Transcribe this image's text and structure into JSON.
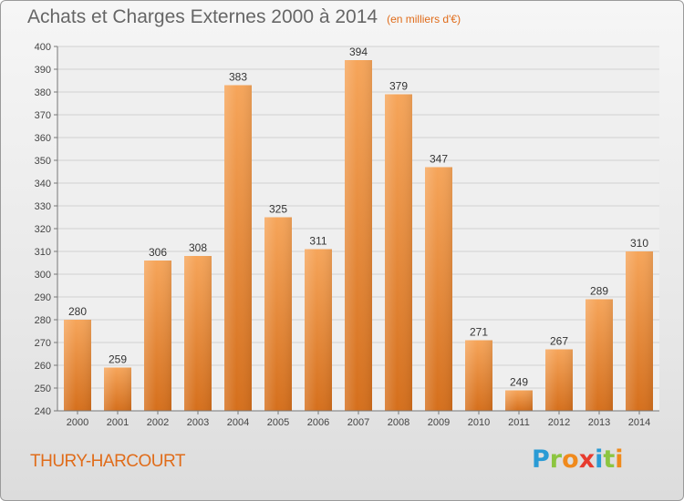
{
  "header": {
    "title": "Achats et Charges Externes 2000 à 2014",
    "unit_note": "(en milliers d'€)"
  },
  "footer": {
    "place": "THURY-HARCOURT",
    "brand_letters": [
      {
        "char": "P",
        "color": "#2a9bd5"
      },
      {
        "char": "r",
        "color": "#8cc540"
      },
      {
        "char": "o",
        "color": "#f08a1c"
      },
      {
        "char": "x",
        "color": "#e73b2e"
      },
      {
        "char": "i",
        "color": "#2a9bd5"
      },
      {
        "char": "t",
        "color": "#8cc540"
      },
      {
        "char": "i",
        "color": "#f08a1c"
      }
    ]
  },
  "chart_data": {
    "type": "bar",
    "title": "Achats et Charges Externes 2000 à 2014",
    "subtitle": "(en milliers d'€)",
    "categories": [
      "2000",
      "2001",
      "2002",
      "2003",
      "2004",
      "2005",
      "2006",
      "2007",
      "2008",
      "2009",
      "2010",
      "2011",
      "2012",
      "2013",
      "2014"
    ],
    "values": [
      280,
      259,
      306,
      308,
      383,
      325,
      311,
      394,
      379,
      347,
      271,
      249,
      267,
      289,
      310
    ],
    "ylim": [
      240,
      400
    ],
    "yticks": [
      240,
      250,
      260,
      270,
      280,
      290,
      300,
      310,
      320,
      330,
      340,
      350,
      360,
      370,
      380,
      390,
      400
    ],
    "grid": true,
    "bar_color_top": "#f6a55a",
    "bar_color_bottom": "#d56f1c"
  }
}
